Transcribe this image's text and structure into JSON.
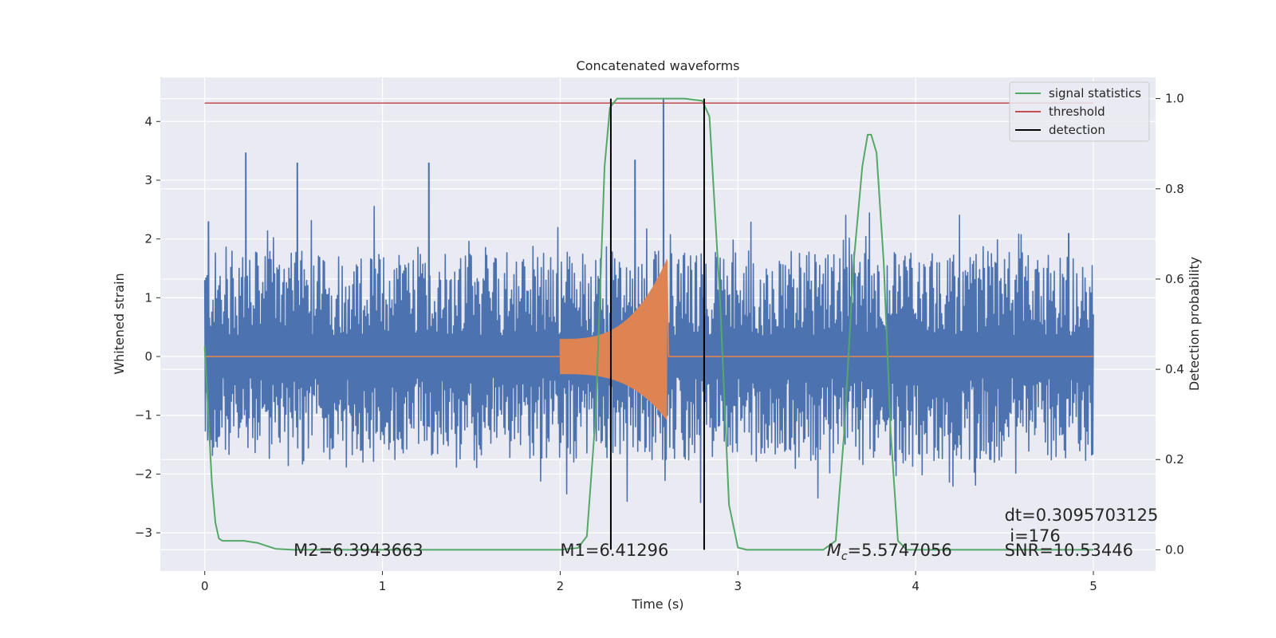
{
  "chart_data": {
    "type": "line",
    "title": "Concatenated waveforms",
    "xlabel": "Time (s)",
    "ylabel": "Whitened strain",
    "y2label": "Detection probability",
    "xlim": [
      -0.25,
      5.35
    ],
    "ylim": [
      -3.65,
      4.75
    ],
    "y2lim": [
      -0.047,
      1.047
    ],
    "grid": true,
    "legend_position": "top-right",
    "xticks": [
      0,
      1,
      2,
      3,
      4,
      5
    ],
    "yticks": [
      -3,
      -2,
      -1,
      0,
      1,
      2,
      3,
      4
    ],
    "y2ticks": [
      0.0,
      0.2,
      0.4,
      0.6,
      0.8,
      1.0
    ],
    "xtick_labels": [
      "0",
      "1",
      "2",
      "3",
      "4",
      "5"
    ],
    "ytick_labels": [
      "−3",
      "−2",
      "−1",
      "0",
      "1",
      "2",
      "3",
      "4"
    ],
    "y2tick_labels": [
      "0.0",
      "0.2",
      "0.4",
      "0.6",
      "0.8",
      "1.0"
    ],
    "series": [
      {
        "role": "whitened-noise",
        "color": "#4c72b0",
        "x_range": [
          0,
          5
        ],
        "envelope": [
          2.0,
          -2.0
        ],
        "peaks": [
          [
            0.23,
            3.47
          ],
          [
            0.52,
            3.3
          ],
          [
            1.26,
            3.3
          ],
          [
            2.42,
            3.35
          ],
          [
            2.58,
            4.4
          ],
          [
            0.02,
            2.3
          ],
          [
            4.86,
            2.1
          ]
        ]
      },
      {
        "role": "injected-signal",
        "color": "#dd8452",
        "x_range": [
          2.0,
          2.6
        ],
        "amplitude_start": 0.3,
        "amplitude_end_pos": 1.65,
        "amplitude_end_neg": -1.08
      },
      {
        "name": "signal statistics",
        "color": "#55a868",
        "axis": "right",
        "points": [
          [
            0,
            0.45
          ],
          [
            0.02,
            0.3
          ],
          [
            0.04,
            0.15
          ],
          [
            0.06,
            0.06
          ],
          [
            0.08,
            0.025
          ],
          [
            0.1,
            0.02
          ],
          [
            0.15,
            0.02
          ],
          [
            0.22,
            0.02
          ],
          [
            0.3,
            0.015
          ],
          [
            0.4,
            0.002
          ],
          [
            0.5,
            0.0
          ],
          [
            1.0,
            0.0
          ],
          [
            1.5,
            0.0
          ],
          [
            2.0,
            0.0
          ],
          [
            2.1,
            0.004
          ],
          [
            2.15,
            0.03
          ],
          [
            2.2,
            0.3
          ],
          [
            2.25,
            0.85
          ],
          [
            2.28,
            0.98
          ],
          [
            2.32,
            1.0
          ],
          [
            2.5,
            1.0
          ],
          [
            2.7,
            1.0
          ],
          [
            2.8,
            0.995
          ],
          [
            2.84,
            0.96
          ],
          [
            2.9,
            0.55
          ],
          [
            2.95,
            0.1
          ],
          [
            3.0,
            0.005
          ],
          [
            3.05,
            0.0
          ],
          [
            3.48,
            0.0
          ],
          [
            3.55,
            0.02
          ],
          [
            3.6,
            0.27
          ],
          [
            3.65,
            0.63
          ],
          [
            3.7,
            0.85
          ],
          [
            3.73,
            0.92
          ],
          [
            3.75,
            0.92
          ],
          [
            3.78,
            0.88
          ],
          [
            3.82,
            0.64
          ],
          [
            3.86,
            0.26
          ],
          [
            3.9,
            0.02
          ],
          [
            3.95,
            0.0
          ],
          [
            4.5,
            0.0
          ],
          [
            5.0,
            0.0
          ]
        ]
      },
      {
        "name": "threshold",
        "color": "#c44e52",
        "axis": "right",
        "x_range": [
          0,
          5
        ],
        "value": 0.99
      },
      {
        "name": "detection",
        "color": "#000000",
        "type": "vlines",
        "x": [
          2.285,
          2.81
        ],
        "y2_range": [
          0,
          1.0
        ]
      }
    ],
    "annotations": [
      {
        "id": "m2",
        "text": "M2=6.3943663",
        "x": 0.5,
        "y": -3.3
      },
      {
        "id": "m1",
        "text": "M1=6.41296",
        "x": 2.0,
        "y": -3.3
      },
      {
        "id": "mc",
        "text_prefix": "M",
        "text_sub": "c",
        "text_suffix": "=5.5747056",
        "x": 3.5,
        "y": -3.3
      },
      {
        "id": "dt",
        "text": "dt=0.3095703125",
        "x": 4.5,
        "y": -2.7
      },
      {
        "id": "i",
        "text": "i=176",
        "x": 4.53,
        "y": -3.05
      },
      {
        "id": "snr",
        "text": "SNR=10.53446",
        "x": 4.5,
        "y": -3.3
      }
    ],
    "legend": [
      {
        "label": "signal statistics",
        "color": "#55a868"
      },
      {
        "label": "threshold",
        "color": "#c44e52"
      },
      {
        "label": "detection",
        "color": "#000000"
      }
    ]
  }
}
